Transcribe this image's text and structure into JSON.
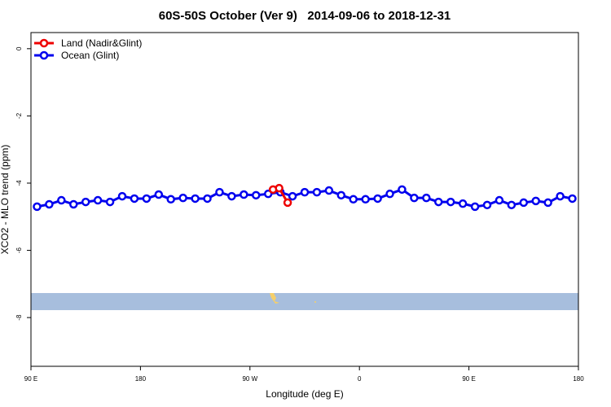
{
  "chart_data": {
    "type": "line",
    "title": "60S-50S October (Ver 9)   2014-09-06 to 2018-12-31",
    "x_label": "Longitude (deg E)",
    "y_label": "XCO2 - MLO trend (ppm)",
    "xlim": [
      90,
      540
    ],
    "xticks": [
      {
        "value": 90,
        "label": "90 E"
      },
      {
        "value": 180,
        "label": "180"
      },
      {
        "value": 270,
        "label": "90 W"
      },
      {
        "value": 360,
        "label": "0"
      },
      {
        "value": 450,
        "label": "90 E"
      },
      {
        "value": 540,
        "label": "180"
      }
    ],
    "ylim": [
      -9.45,
      0.48
    ],
    "yticks": [
      0,
      -2,
      -4,
      -6,
      -8
    ],
    "legend": "top-left",
    "series": [
      {
        "name": "Land (Nadir&Glint)",
        "color": "#ee0000",
        "x": [
          289,
          294,
          301
        ],
        "values": [
          -4.19,
          -4.15,
          -4.58
        ]
      },
      {
        "name": "Ocean (Glint)",
        "color": "#0000ee",
        "x": [
          95,
          105,
          115,
          125,
          135,
          145,
          155,
          165,
          175,
          185,
          195,
          205,
          215,
          225,
          235,
          245,
          255,
          265,
          275,
          285,
          295,
          305,
          315,
          325,
          335,
          345,
          355,
          365,
          375,
          385,
          395,
          405,
          415,
          425,
          435,
          445,
          455,
          465,
          475,
          485,
          495,
          505,
          515,
          525,
          535
        ],
        "values": [
          -4.7,
          -4.63,
          -4.51,
          -4.63,
          -4.56,
          -4.51,
          -4.56,
          -4.39,
          -4.46,
          -4.46,
          -4.34,
          -4.48,
          -4.44,
          -4.46,
          -4.46,
          -4.27,
          -4.39,
          -4.34,
          -4.36,
          -4.32,
          -4.27,
          -4.39,
          -4.27,
          -4.27,
          -4.22,
          -4.36,
          -4.48,
          -4.48,
          -4.46,
          -4.32,
          -4.19,
          -4.44,
          -4.44,
          -4.56,
          -4.56,
          -4.61,
          -4.7,
          -4.65,
          -4.51,
          -4.65,
          -4.58,
          -4.53,
          -4.58,
          -4.39,
          -4.46
        ]
      }
    ]
  }
}
